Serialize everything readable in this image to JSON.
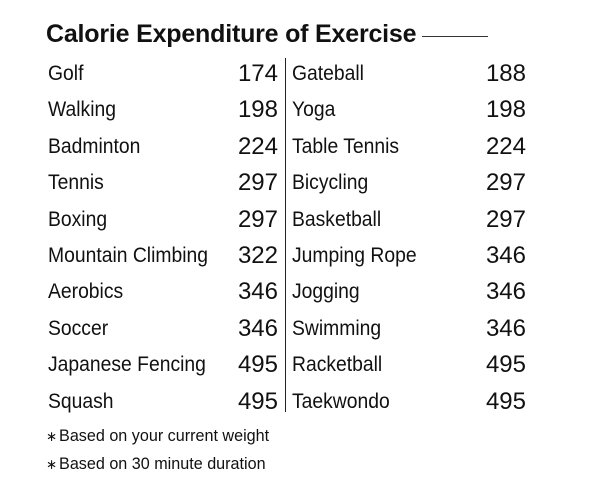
{
  "title": "Calorie Expenditure of Exercise",
  "chart_data": {
    "type": "table",
    "title": "Calorie Expenditure of Exercise",
    "left_column": [
      {
        "exercise": "Golf",
        "calories": 174
      },
      {
        "exercise": "Walking",
        "calories": 198
      },
      {
        "exercise": "Badminton",
        "calories": 224
      },
      {
        "exercise": "Tennis",
        "calories": 297
      },
      {
        "exercise": "Boxing",
        "calories": 297
      },
      {
        "exercise": "Mountain Climbing",
        "calories": 322
      },
      {
        "exercise": "Aerobics",
        "calories": 346
      },
      {
        "exercise": "Soccer",
        "calories": 346
      },
      {
        "exercise": "Japanese Fencing",
        "calories": 495
      },
      {
        "exercise": "Squash",
        "calories": 495
      }
    ],
    "right_column": [
      {
        "exercise": "Gateball",
        "calories": 188
      },
      {
        "exercise": "Yoga",
        "calories": 198
      },
      {
        "exercise": "Table Tennis",
        "calories": 224
      },
      {
        "exercise": "Bicycling",
        "calories": 297
      },
      {
        "exercise": "Basketball",
        "calories": 297
      },
      {
        "exercise": "Jumping Rope",
        "calories": 346
      },
      {
        "exercise": "Jogging",
        "calories": 346
      },
      {
        "exercise": "Swimming",
        "calories": 346
      },
      {
        "exercise": "Racketball",
        "calories": 495
      },
      {
        "exercise": "Taekwondo",
        "calories": 495
      }
    ]
  },
  "notes": [
    {
      "marker": "∗",
      "text": "Based on your current weight"
    },
    {
      "marker": "∗",
      "text": "Based on 30 minute duration"
    }
  ]
}
